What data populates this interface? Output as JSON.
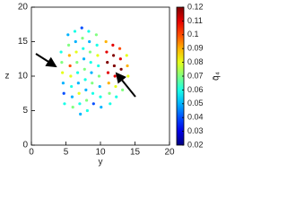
{
  "chart_data": {
    "type": "scatter",
    "x_label": "y",
    "y_label": "z",
    "colorbar_label": "q̄₄",
    "xlim": [
      0,
      20
    ],
    "xticks": [
      0,
      5,
      10,
      15,
      20
    ],
    "ylim": [
      0,
      20
    ],
    "yticks": [
      0,
      5,
      10,
      15,
      20
    ],
    "clim": [
      0.02,
      0.12
    ],
    "cticks": [
      0.02,
      0.03,
      0.04,
      0.05,
      0.06,
      0.07,
      0.08,
      0.09,
      0.1,
      0.11,
      0.12
    ],
    "colormap": "jet",
    "x": [
      4.3,
      4.4,
      4.5,
      4.6,
      4.7,
      4.8,
      5.3,
      5.4,
      5.5,
      5.6,
      5.7,
      5.8,
      5.9,
      6.0,
      6.3,
      6.4,
      6.5,
      6.6,
      6.7,
      6.8,
      6.9,
      7.0,
      7.1,
      7.3,
      7.4,
      7.5,
      7.6,
      7.7,
      7.8,
      7.9,
      8.0,
      8.1,
      8.3,
      8.4,
      8.5,
      8.6,
      8.7,
      8.8,
      8.9,
      9.0,
      9.4,
      9.5,
      9.6,
      9.7,
      9.8,
      9.9,
      10.0,
      10.1,
      10.8,
      10.9,
      11.0,
      11.1,
      11.2,
      11.3,
      11.4,
      11.8,
      11.9,
      12.0,
      12.1,
      12.2,
      12.3,
      12.8,
      12.9,
      13.0,
      13.1,
      13.2,
      13.8,
      13.9,
      14.0
    ],
    "values": [
      13.5,
      12,
      10.5,
      9,
      7.5,
      6,
      16,
      14.5,
      13,
      11.5,
      10,
      8.5,
      7,
      5.5,
      16.5,
      15,
      13.5,
      12,
      10.5,
      9,
      7.5,
      6,
      4.5,
      17,
      15.5,
      14,
      12.5,
      11,
      9.5,
      8,
      6.5,
      5,
      16.5,
      15,
      13.5,
      12,
      10.5,
      9,
      7.5,
      6,
      16,
      14.5,
      13,
      11.5,
      10,
      8.5,
      7,
      5.5,
      15,
      13.5,
      12,
      10.5,
      9,
      7.5,
      6,
      14.5,
      13,
      11.5,
      10,
      8.5,
      7,
      14,
      12.5,
      11,
      9.5,
      8,
      13,
      11.5,
      10
    ],
    "color_values": [
      0.06,
      0.07,
      0.08,
      0.05,
      0.04,
      0.06,
      0.05,
      0.07,
      0.09,
      0.1,
      0.08,
      0.06,
      0.05,
      0.07,
      0.06,
      0.05,
      0.08,
      0.07,
      0.06,
      0.05,
      0.08,
      0.06,
      0.05,
      0.04,
      0.07,
      0.06,
      0.05,
      0.07,
      0.06,
      0.05,
      0.07,
      0.06,
      0.06,
      0.05,
      0.07,
      0.06,
      0.05,
      0.07,
      0.06,
      0.04,
      0.07,
      0.06,
      0.08,
      0.06,
      0.07,
      0.05,
      0.06,
      0.05,
      0.09,
      0.11,
      0.12,
      0.11,
      0.09,
      0.07,
      0.06,
      0.11,
      0.12,
      0.12,
      0.11,
      0.08,
      0.06,
      0.1,
      0.11,
      0.12,
      0.1,
      0.07,
      0.08,
      0.09,
      0.08
    ]
  }
}
